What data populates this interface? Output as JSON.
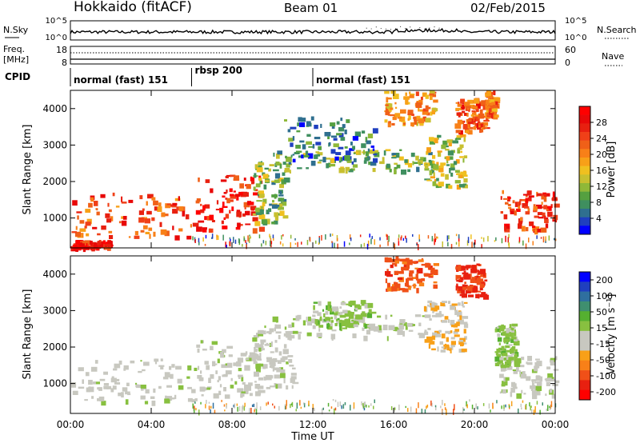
{
  "header": {
    "station": "Hokkaido (fitACF)",
    "beam": "Beam 01",
    "date": "02/Feb/2015"
  },
  "noise_panel": {
    "left_label": "N.Sky",
    "right_label": "N.Search",
    "left_ticks": [
      "10^5",
      "10^0"
    ],
    "right_ticks": [
      "10^5",
      "10^0"
    ]
  },
  "freq_panel": {
    "left_label_1": "Freq.",
    "left_label_2": "[MHz]",
    "right_label": "Nave",
    "left_ticks": [
      "18",
      "8"
    ],
    "right_ticks": [
      "60",
      "0"
    ]
  },
  "cpid": {
    "label": "CPID",
    "segments": [
      {
        "name": "normal (fast) 151",
        "start_hour": 0,
        "end_hour": 6
      },
      {
        "name": "rbsp 200",
        "start_hour": 6,
        "end_hour": 12
      },
      {
        "name": "normal (fast) 151",
        "start_hour": 12,
        "end_hour": 24
      }
    ]
  },
  "chart_data": [
    {
      "type": "heatmap",
      "title": "",
      "xlabel": "Time UT",
      "ylabel": "Slant Range [km]",
      "x_ticks": [
        "00:00",
        "04:00",
        "08:00",
        "12:00",
        "16:00",
        "20:00",
        "00:00"
      ],
      "xlim_hours": [
        0,
        24
      ],
      "y_ticks": [
        1000,
        2000,
        3000,
        4000
      ],
      "ylim": [
        180,
        4500
      ],
      "colorbar": {
        "label": "Power [dB]",
        "ticks": [
          "4",
          "8",
          "12",
          "16",
          "20",
          "24",
          "28"
        ],
        "range": [
          0,
          30
        ],
        "colors": [
          "#0000ff",
          "#1f3fbf",
          "#2f6f8f",
          "#3f8f5f",
          "#55a040",
          "#8fb838",
          "#c8c030",
          "#f0c020",
          "#f8a018",
          "#f88018",
          "#f06018",
          "#f04018",
          "#e82010",
          "#e80808",
          "#ff0000"
        ]
      },
      "regions": [
        {
          "hours": [
            0,
            6.2
          ],
          "range_km": [
            500,
            1700
          ],
          "dB": 22
        },
        {
          "hours": [
            6.2,
            9.5
          ],
          "range_km": [
            700,
            2200
          ],
          "dB": 26
        },
        {
          "hours": [
            9.0,
            10.6
          ],
          "range_km": [
            900,
            2600
          ],
          "dB": 10
        },
        {
          "hours": [
            10.0,
            17.8
          ],
          "range_km": [
            2300,
            2900
          ],
          "dB": 10
        },
        {
          "hours": [
            10.5,
            15.0
          ],
          "range_km": [
            2500,
            3800
          ],
          "dB": 6
        },
        {
          "hours": [
            15.5,
            18.0
          ],
          "range_km": [
            3600,
            4500
          ],
          "dB": 18
        },
        {
          "hours": [
            17.5,
            19.5
          ],
          "range_km": [
            1900,
            3300
          ],
          "dB": 12
        },
        {
          "hours": [
            19.0,
            20.5
          ],
          "range_km": [
            3400,
            4300
          ],
          "dB": 22
        },
        {
          "hours": [
            20.5,
            21.0
          ],
          "range_km": [
            3800,
            4500
          ],
          "dB": 20
        },
        {
          "hours": [
            21.2,
            24.0
          ],
          "range_km": [
            700,
            1800
          ],
          "dB": 24
        },
        {
          "hours": [
            0,
            2.0
          ],
          "range_km": [
            200,
            400
          ],
          "dB": 26
        }
      ]
    },
    {
      "type": "heatmap",
      "title": "",
      "xlabel": "Time UT",
      "ylabel": "Slant Range [km]",
      "x_ticks": [
        "00:00",
        "04:00",
        "08:00",
        "12:00",
        "16:00",
        "20:00",
        "00:00"
      ],
      "xlim_hours": [
        0,
        24
      ],
      "y_ticks": [
        1000,
        2000,
        3000,
        4000
      ],
      "ylim": [
        180,
        4500
      ],
      "colorbar": {
        "label": "Velocity [m s⁻¹]",
        "ticks": [
          "200",
          "100",
          "50",
          "15",
          "-15",
          "-50",
          "-100",
          "-200"
        ],
        "range": [
          -250,
          250
        ],
        "colors": [
          "#ff0000",
          "#e82010",
          "#f05018",
          "#f88018",
          "#f8a018",
          "#c8c8c0",
          "#c8c8c0",
          "#88c040",
          "#55b030",
          "#3f8f6f",
          "#2f6f9f",
          "#1f3fbf",
          "#0000ff"
        ]
      },
      "regions": [
        {
          "hours": [
            0,
            6.2
          ],
          "range_km": [
            500,
            1700
          ],
          "velocity": 0
        },
        {
          "hours": [
            6.2,
            9.5
          ],
          "range_km": [
            700,
            2200
          ],
          "velocity": 0
        },
        {
          "hours": [
            9.0,
            11.0
          ],
          "range_km": [
            900,
            2600
          ],
          "velocity": 0
        },
        {
          "hours": [
            10.0,
            17.8
          ],
          "range_km": [
            2300,
            2900
          ],
          "velocity": 10
        },
        {
          "hours": [
            12.0,
            15.0
          ],
          "range_km": [
            2600,
            3300
          ],
          "velocity": 40
        },
        {
          "hours": [
            15.5,
            18.0
          ],
          "range_km": [
            3600,
            4500
          ],
          "velocity": -150
        },
        {
          "hours": [
            17.5,
            19.5
          ],
          "range_km": [
            1900,
            3300
          ],
          "velocity": -60
        },
        {
          "hours": [
            19.0,
            20.5
          ],
          "range_km": [
            3400,
            4300
          ],
          "velocity": -180
        },
        {
          "hours": [
            21.2,
            24.0
          ],
          "range_km": [
            700,
            1800
          ],
          "velocity": 0
        },
        {
          "hours": [
            21.0,
            22.0
          ],
          "range_km": [
            1500,
            2700
          ],
          "velocity": 40
        }
      ]
    }
  ]
}
